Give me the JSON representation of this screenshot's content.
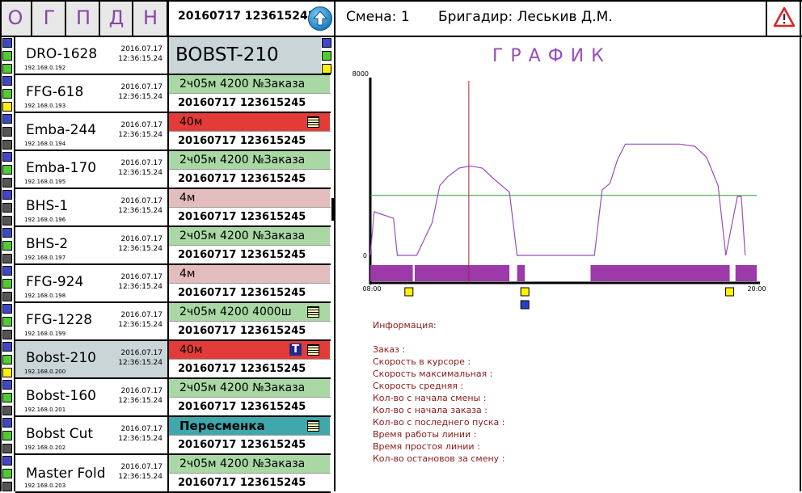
{
  "nav": [
    "О",
    "Г",
    "П",
    "Д",
    "Н"
  ],
  "top_code": "20160717 123615245",
  "shift_label": "Смена: 1",
  "brigadir_label": "Бригадир: Леськив Д.М.",
  "selected_title": "BOBST-210",
  "chart_data": {
    "type": "line",
    "title": "ГРАФИК",
    "y_top_label": "8000",
    "y_bottom_label": "0",
    "x_start_label": "08:00",
    "x_end_label": "20:00",
    "ylim": [
      0,
      8000
    ],
    "threshold_y": 2750,
    "cursor_x": 0.255,
    "series": [
      {
        "x": [
          0,
          0.01,
          0.06,
          0.07,
          0.1,
          0.12,
          0.16,
          0.18,
          0.2,
          0.23,
          0.26,
          0.29,
          0.32,
          0.36,
          0.38,
          0.4,
          0.56,
          0.58,
          0.6,
          0.62,
          0.64,
          0.66,
          0.8,
          0.84,
          0.87,
          0.9,
          0.92,
          0.95,
          0.96,
          0.97
        ],
        "y": [
          0,
          2000,
          1700,
          0,
          0,
          0,
          1500,
          3200,
          3600,
          4000,
          4100,
          4000,
          3500,
          2900,
          0,
          0,
          0,
          0,
          3000,
          3300,
          4400,
          5100,
          5100,
          5000,
          4500,
          3200,
          0,
          2700,
          2700,
          0
        ]
      }
    ],
    "activity_blocks": [
      [
        0,
        0.11
      ],
      [
        0.115,
        0.36
      ],
      [
        0.38,
        0.4
      ],
      [
        0.57,
        0.93
      ],
      [
        0.945,
        1.0
      ]
    ],
    "markers": [
      {
        "x": 0.1,
        "color": "#fff100"
      },
      {
        "x": 0.4,
        "color": "#fff100"
      },
      {
        "x": 0.4,
        "color": "#2a3fc0",
        "second": true
      },
      {
        "x": 0.93,
        "color": "#fff100"
      }
    ]
  },
  "info": {
    "title": "Информация:",
    "lines": [
      "Заказ :",
      "Скорость в курсоре :",
      "Скорость максимальная :",
      "Скорость средняя :",
      "Кол-во с начала смены :",
      "Кол-во с начала заказа :",
      "Кол-во с последнего пуска :",
      "Время работы линии :",
      "Время простоя линии :",
      "Кол-во остановов за смену :"
    ]
  },
  "machines": [
    {
      "name": "DRO-1628",
      "ip": "192.168.0.192",
      "date": "2016.07.17",
      "time": "12:36:15.24",
      "status": "",
      "code": "",
      "color": "",
      "sq": [
        "#3f47c8",
        "#4ecc2e",
        "#4ecc2e"
      ],
      "icons": []
    },
    {
      "name": "FFG-618",
      "ip": "192.168.0.193",
      "date": "2016.07.17",
      "time": "12:36:15.24",
      "status": "2ч05м 4200 №Заказа",
      "code": "20160717 123615245",
      "color": "#a9d8a4",
      "sq": [
        "#3f47c8",
        "#4ecc2e",
        "#fff100"
      ],
      "icons": []
    },
    {
      "name": "Emba-244",
      "ip": "192.168.0.194",
      "date": "2016.07.17",
      "time": "12:36:15.24",
      "status": "40м",
      "code": "20160717 123615245",
      "color": "#e33b38",
      "sq": [
        "#3f47c8",
        "#555555",
        "#555555"
      ],
      "icons": [
        "doc"
      ]
    },
    {
      "name": "Emba-170",
      "ip": "192.168.0.195",
      "date": "2016.07.17",
      "time": "12:36:15.24",
      "status": "2ч05м 4200 №Заказа",
      "code": "20160717 123615245",
      "color": "#a9d8a4",
      "sq": [
        "#3f47c8",
        "#4ecc2e",
        "#555555"
      ],
      "icons": []
    },
    {
      "name": "BHS-1",
      "ip": "192.168.0.196",
      "date": "2016.07.17",
      "time": "12:36:15.24",
      "status": "4м",
      "code": "20160717 123615245",
      "color": "#e3bcbd",
      "sq": [
        "#3f47c8",
        "#555555",
        "#555555"
      ],
      "icons": []
    },
    {
      "name": "BHS-2",
      "ip": "192.168.0.197",
      "date": "2016.07.17",
      "time": "12:36:15.24",
      "status": "2ч05м 4200 №Заказа",
      "code": "20160717 123615245",
      "color": "#a9d8a4",
      "sq": [
        "#3f47c8",
        "#4ecc2e",
        "#555555"
      ],
      "icons": []
    },
    {
      "name": "FFG-924",
      "ip": "192.168.0.198",
      "date": "2016.07.17",
      "time": "12:36:15.24",
      "status": "4м",
      "code": "20160717 123615245",
      "color": "#e3bcbd",
      "sq": [
        "#3f47c8",
        "#4ecc2e",
        "#555555"
      ],
      "icons": []
    },
    {
      "name": "FFG-1228",
      "ip": "192.168.0.199",
      "date": "2016.07.17",
      "time": "12:36:15.24",
      "status": "2ч05м 4200 4000ш",
      "code": "20160717 123615245",
      "color": "#a9d8a4",
      "sq": [
        "#3f47c8",
        "#4ecc2e",
        "#555555"
      ],
      "icons": [
        "doc"
      ]
    },
    {
      "name": "Bobst-210",
      "ip": "192.168.0.200",
      "date": "2016.07.17",
      "time": "12:36:15.24",
      "status": "40м",
      "code": "20160717 123615245",
      "color": "#e33b38",
      "sq": [
        "#3f47c8",
        "#4ecc2e",
        "#fff100"
      ],
      "icons": [
        "t",
        "doc"
      ]
    },
    {
      "name": "Bobst-160",
      "ip": "192.168.0.201",
      "date": "2016.07.17",
      "time": "12:36:15.24",
      "status": "2ч05м 4200 №Заказа",
      "code": "20160717 123615245",
      "color": "#a9d8a4",
      "sq": [
        "#3f47c8",
        "#4ecc2e",
        "#555555"
      ],
      "icons": []
    },
    {
      "name": "Bobst Cut",
      "ip": "192.168.0.202",
      "date": "2016.07.17",
      "time": "12:36:15.24",
      "status": "Пересменка",
      "code": "20160717 123615245",
      "color": "#3fa8ac",
      "sq": [
        "#3f47c8",
        "#4ecc2e",
        "#555555"
      ],
      "icons": [
        "doc"
      ]
    },
    {
      "name": "Master Fold",
      "ip": "192.168.0.203",
      "date": "2016.07.17",
      "time": "12:36:15.24",
      "status": "2ч05м 4200 №Заказа",
      "code": "20160717 123615245",
      "color": "#a9d8a4",
      "sq": [
        "#3f47c8",
        "#4ecc2e",
        "#555555"
      ],
      "icons": []
    }
  ]
}
